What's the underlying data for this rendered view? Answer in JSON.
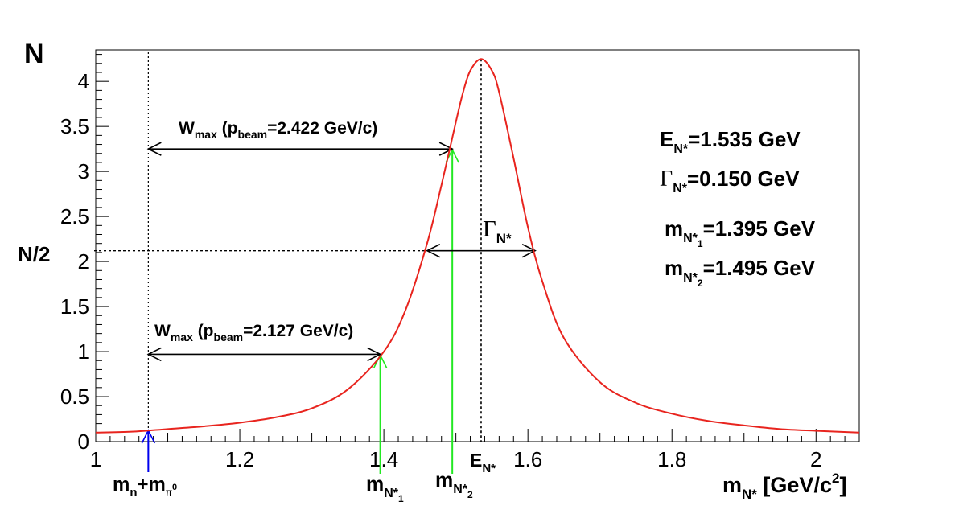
{
  "chart_data": {
    "type": "line",
    "xlabel": {
      "main": "m",
      "sub": "N*",
      "rest": " [GeV/c",
      "sup": "2",
      "end": "]"
    },
    "ylabel": "N",
    "half_label": "N/2",
    "xlim": [
      1.0,
      2.06
    ],
    "ylim": [
      0,
      4.35
    ],
    "x_ticks": [
      1,
      1.2,
      1.4,
      1.6,
      1.8,
      2
    ],
    "x_tick_labels": [
      "1",
      "1.2",
      "1.4",
      "1.6",
      "1.8",
      "2"
    ],
    "y_ticks": [
      0,
      0.5,
      1,
      1.5,
      2,
      2.5,
      3,
      3.5,
      4
    ],
    "y_tick_labels": [
      "0",
      "0.5",
      "1",
      "1.5",
      "2",
      "2.5",
      "3",
      "3.5",
      "4"
    ],
    "series": [
      {
        "color": "#e8241e",
        "x": [
          1.0,
          1.05,
          1.1,
          1.15,
          1.2,
          1.25,
          1.3,
          1.35,
          1.4,
          1.43,
          1.46,
          1.48,
          1.5,
          1.51,
          1.52,
          1.535,
          1.55,
          1.56,
          1.58,
          1.6,
          1.62,
          1.65,
          1.7,
          1.75,
          1.8,
          1.85,
          1.9,
          1.95,
          2.0,
          2.06
        ],
        "y": [
          0.1,
          0.11,
          0.14,
          0.17,
          0.21,
          0.27,
          0.37,
          0.58,
          1.0,
          1.46,
          2.2,
          2.85,
          3.55,
          3.88,
          4.12,
          4.25,
          4.12,
          3.88,
          3.15,
          2.38,
          1.78,
          1.15,
          0.66,
          0.43,
          0.31,
          0.23,
          0.18,
          0.14,
          0.12,
          0.1
        ]
      }
    ],
    "vlines": {
      "threshold_x": 1.073,
      "peak_x": 1.535
    },
    "half_max_y": 2.12,
    "arrows": {
      "wmax1": {
        "x1": 1.073,
        "x2": 1.395,
        "y": 0.97
      },
      "wmax2": {
        "x1": 1.073,
        "x2": 1.495,
        "y": 3.25
      },
      "gamma": {
        "x1": 1.46,
        "x2": 1.61,
        "y": 2.12
      }
    },
    "annotations": {
      "wmax1": {
        "w": "W",
        "w_sub": "max",
        "open": " (p",
        "p_sub": "beam",
        "rest": "=2.127 GeV/c)"
      },
      "wmax2": {
        "w": "W",
        "w_sub": "max",
        "open": " (p",
        "p_sub": "beam",
        "rest": "=2.422 GeV/c)"
      },
      "gamma_label": {
        "sym": "Γ",
        "sub": "N*"
      },
      "e_peak": {
        "main": "E",
        "sub": "N*",
        "rest": "=1.535 GeV"
      },
      "gamma_value": {
        "sym": "Γ",
        "sub": "N*",
        "rest": "=0.150 GeV"
      },
      "m1_value": {
        "main": "m",
        "sub": "N*",
        "subsub": "1",
        "rest": "=1.395 GeV"
      },
      "m2_value": {
        "main": "m",
        "sub": "N*",
        "subsub": "2",
        "rest": "=1.495 GeV"
      },
      "threshold_label": {
        "m1": "m",
        "s1": "n",
        "plus": "+m",
        "s2": "π",
        "s2sup": "0"
      },
      "m1_axis": {
        "main": "m",
        "sub": "N*",
        "subsub": "1"
      },
      "m2_axis": {
        "main": "m",
        "sub": "N*",
        "subsub": "2"
      },
      "e_axis": {
        "main": "E",
        "sub": "N*"
      }
    },
    "colors": {
      "curve": "#e8241e",
      "green": "#22e822",
      "blue": "#0000ee",
      "black": "#000000"
    },
    "grid": false,
    "legend": "none"
  }
}
